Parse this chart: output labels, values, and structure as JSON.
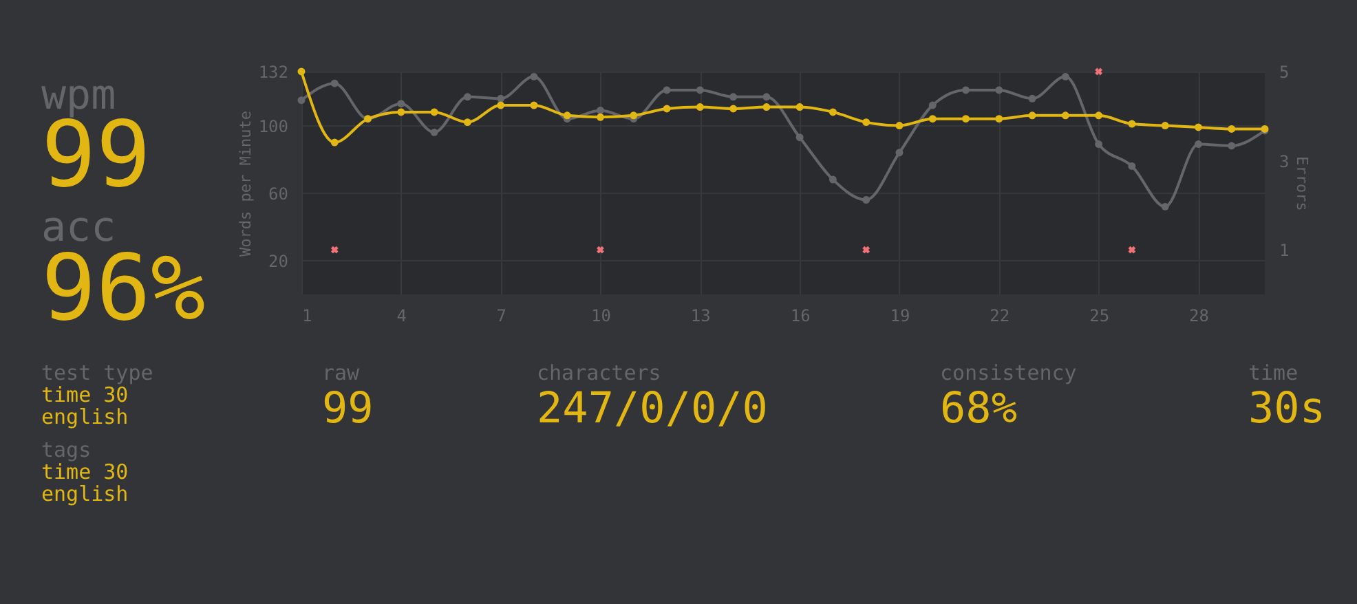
{
  "chart_data": {
    "type": "line",
    "ylabel": "Words per Minute",
    "y2label": "Errors",
    "x": [
      1,
      2,
      3,
      4,
      5,
      6,
      7,
      8,
      9,
      10,
      11,
      12,
      13,
      14,
      15,
      16,
      17,
      18,
      19,
      20,
      21,
      22,
      23,
      24,
      25,
      26,
      27,
      28,
      29,
      30
    ],
    "xlim": [
      1,
      30
    ],
    "xticks": [
      1,
      4,
      7,
      10,
      13,
      16,
      19,
      22,
      25,
      28
    ],
    "ylim": [
      0,
      132
    ],
    "yticks": [
      20,
      60,
      100,
      132
    ],
    "y2lim": [
      0,
      5
    ],
    "y2ticks": [
      1,
      3,
      5
    ],
    "grid": true,
    "marker": "circle",
    "line_style": "solid",
    "series": [
      {
        "color": "#646669",
        "values": [
          115,
          125,
          104,
          113,
          96,
          117,
          116,
          129,
          104,
          109,
          104,
          121,
          121,
          117,
          117,
          93,
          68,
          56,
          84,
          112,
          121,
          121,
          116,
          129,
          89,
          76,
          52,
          89,
          88,
          97
        ]
      },
      {
        "color": "#e2b714",
        "values": [
          132,
          90,
          104,
          108,
          108,
          102,
          112,
          112,
          106,
          105,
          106,
          110,
          111,
          110,
          111,
          111,
          108,
          102,
          100,
          104,
          104,
          104,
          106,
          106,
          106,
          101,
          100,
          99,
          98,
          98
        ]
      },
      {
        "type": "scatter",
        "axis": "y2",
        "marker": "cross",
        "color": "#f07178",
        "values": [
          null,
          1,
          null,
          null,
          null,
          null,
          null,
          null,
          null,
          1,
          null,
          null,
          null,
          null,
          null,
          null,
          null,
          1,
          null,
          null,
          null,
          null,
          null,
          null,
          5,
          1,
          null,
          null,
          null,
          null
        ]
      }
    ],
    "annotations": [
      "wpm",
      "99",
      "acc",
      "96%",
      "test type",
      "time 30",
      "english",
      "tags",
      "time 30",
      "english",
      "raw",
      "99",
      "characters",
      "247/0/0/0",
      "consistency",
      "68%",
      "time",
      "30s"
    ]
  }
}
